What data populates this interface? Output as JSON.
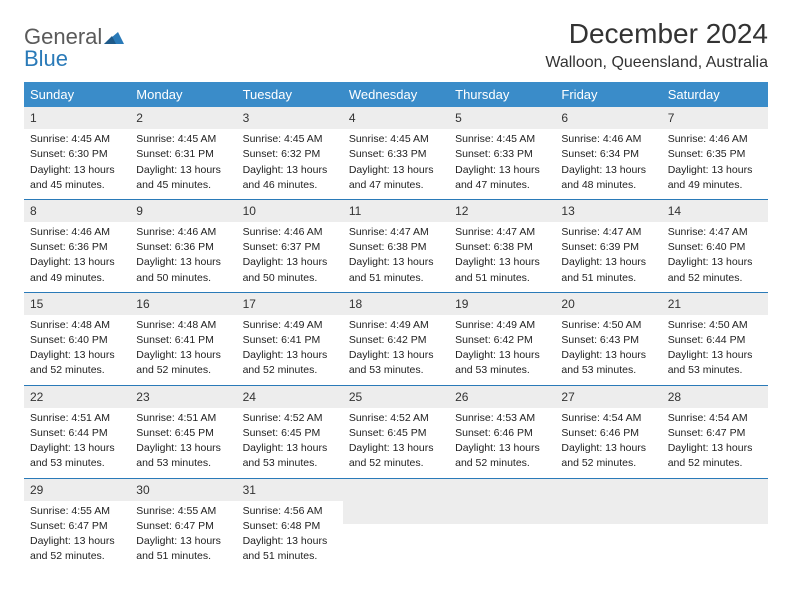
{
  "brand": {
    "general": "General",
    "blue": "Blue"
  },
  "title": "December 2024",
  "location": "Walloon, Queensland, Australia",
  "colors": {
    "header_bg": "#3a8cc9",
    "header_text": "#ffffff",
    "daynum_bg": "#ededed",
    "week_border": "#2a7ab8",
    "logo_gray": "#5a5a5a",
    "logo_blue": "#2a7ab8"
  },
  "dow": [
    "Sunday",
    "Monday",
    "Tuesday",
    "Wednesday",
    "Thursday",
    "Friday",
    "Saturday"
  ],
  "weeks": [
    [
      {
        "n": "1",
        "sr": "Sunrise: 4:45 AM",
        "ss": "Sunset: 6:30 PM",
        "d1": "Daylight: 13 hours",
        "d2": "and 45 minutes."
      },
      {
        "n": "2",
        "sr": "Sunrise: 4:45 AM",
        "ss": "Sunset: 6:31 PM",
        "d1": "Daylight: 13 hours",
        "d2": "and 45 minutes."
      },
      {
        "n": "3",
        "sr": "Sunrise: 4:45 AM",
        "ss": "Sunset: 6:32 PM",
        "d1": "Daylight: 13 hours",
        "d2": "and 46 minutes."
      },
      {
        "n": "4",
        "sr": "Sunrise: 4:45 AM",
        "ss": "Sunset: 6:33 PM",
        "d1": "Daylight: 13 hours",
        "d2": "and 47 minutes."
      },
      {
        "n": "5",
        "sr": "Sunrise: 4:45 AM",
        "ss": "Sunset: 6:33 PM",
        "d1": "Daylight: 13 hours",
        "d2": "and 47 minutes."
      },
      {
        "n": "6",
        "sr": "Sunrise: 4:46 AM",
        "ss": "Sunset: 6:34 PM",
        "d1": "Daylight: 13 hours",
        "d2": "and 48 minutes."
      },
      {
        "n": "7",
        "sr": "Sunrise: 4:46 AM",
        "ss": "Sunset: 6:35 PM",
        "d1": "Daylight: 13 hours",
        "d2": "and 49 minutes."
      }
    ],
    [
      {
        "n": "8",
        "sr": "Sunrise: 4:46 AM",
        "ss": "Sunset: 6:36 PM",
        "d1": "Daylight: 13 hours",
        "d2": "and 49 minutes."
      },
      {
        "n": "9",
        "sr": "Sunrise: 4:46 AM",
        "ss": "Sunset: 6:36 PM",
        "d1": "Daylight: 13 hours",
        "d2": "and 50 minutes."
      },
      {
        "n": "10",
        "sr": "Sunrise: 4:46 AM",
        "ss": "Sunset: 6:37 PM",
        "d1": "Daylight: 13 hours",
        "d2": "and 50 minutes."
      },
      {
        "n": "11",
        "sr": "Sunrise: 4:47 AM",
        "ss": "Sunset: 6:38 PM",
        "d1": "Daylight: 13 hours",
        "d2": "and 51 minutes."
      },
      {
        "n": "12",
        "sr": "Sunrise: 4:47 AM",
        "ss": "Sunset: 6:38 PM",
        "d1": "Daylight: 13 hours",
        "d2": "and 51 minutes."
      },
      {
        "n": "13",
        "sr": "Sunrise: 4:47 AM",
        "ss": "Sunset: 6:39 PM",
        "d1": "Daylight: 13 hours",
        "d2": "and 51 minutes."
      },
      {
        "n": "14",
        "sr": "Sunrise: 4:47 AM",
        "ss": "Sunset: 6:40 PM",
        "d1": "Daylight: 13 hours",
        "d2": "and 52 minutes."
      }
    ],
    [
      {
        "n": "15",
        "sr": "Sunrise: 4:48 AM",
        "ss": "Sunset: 6:40 PM",
        "d1": "Daylight: 13 hours",
        "d2": "and 52 minutes."
      },
      {
        "n": "16",
        "sr": "Sunrise: 4:48 AM",
        "ss": "Sunset: 6:41 PM",
        "d1": "Daylight: 13 hours",
        "d2": "and 52 minutes."
      },
      {
        "n": "17",
        "sr": "Sunrise: 4:49 AM",
        "ss": "Sunset: 6:41 PM",
        "d1": "Daylight: 13 hours",
        "d2": "and 52 minutes."
      },
      {
        "n": "18",
        "sr": "Sunrise: 4:49 AM",
        "ss": "Sunset: 6:42 PM",
        "d1": "Daylight: 13 hours",
        "d2": "and 53 minutes."
      },
      {
        "n": "19",
        "sr": "Sunrise: 4:49 AM",
        "ss": "Sunset: 6:42 PM",
        "d1": "Daylight: 13 hours",
        "d2": "and 53 minutes."
      },
      {
        "n": "20",
        "sr": "Sunrise: 4:50 AM",
        "ss": "Sunset: 6:43 PM",
        "d1": "Daylight: 13 hours",
        "d2": "and 53 minutes."
      },
      {
        "n": "21",
        "sr": "Sunrise: 4:50 AM",
        "ss": "Sunset: 6:44 PM",
        "d1": "Daylight: 13 hours",
        "d2": "and 53 minutes."
      }
    ],
    [
      {
        "n": "22",
        "sr": "Sunrise: 4:51 AM",
        "ss": "Sunset: 6:44 PM",
        "d1": "Daylight: 13 hours",
        "d2": "and 53 minutes."
      },
      {
        "n": "23",
        "sr": "Sunrise: 4:51 AM",
        "ss": "Sunset: 6:45 PM",
        "d1": "Daylight: 13 hours",
        "d2": "and 53 minutes."
      },
      {
        "n": "24",
        "sr": "Sunrise: 4:52 AM",
        "ss": "Sunset: 6:45 PM",
        "d1": "Daylight: 13 hours",
        "d2": "and 53 minutes."
      },
      {
        "n": "25",
        "sr": "Sunrise: 4:52 AM",
        "ss": "Sunset: 6:45 PM",
        "d1": "Daylight: 13 hours",
        "d2": "and 52 minutes."
      },
      {
        "n": "26",
        "sr": "Sunrise: 4:53 AM",
        "ss": "Sunset: 6:46 PM",
        "d1": "Daylight: 13 hours",
        "d2": "and 52 minutes."
      },
      {
        "n": "27",
        "sr": "Sunrise: 4:54 AM",
        "ss": "Sunset: 6:46 PM",
        "d1": "Daylight: 13 hours",
        "d2": "and 52 minutes."
      },
      {
        "n": "28",
        "sr": "Sunrise: 4:54 AM",
        "ss": "Sunset: 6:47 PM",
        "d1": "Daylight: 13 hours",
        "d2": "and 52 minutes."
      }
    ],
    [
      {
        "n": "29",
        "sr": "Sunrise: 4:55 AM",
        "ss": "Sunset: 6:47 PM",
        "d1": "Daylight: 13 hours",
        "d2": "and 52 minutes."
      },
      {
        "n": "30",
        "sr": "Sunrise: 4:55 AM",
        "ss": "Sunset: 6:47 PM",
        "d1": "Daylight: 13 hours",
        "d2": "and 51 minutes."
      },
      {
        "n": "31",
        "sr": "Sunrise: 4:56 AM",
        "ss": "Sunset: 6:48 PM",
        "d1": "Daylight: 13 hours",
        "d2": "and 51 minutes."
      },
      {
        "empty": true
      },
      {
        "empty": true
      },
      {
        "empty": true
      },
      {
        "empty": true
      }
    ]
  ]
}
